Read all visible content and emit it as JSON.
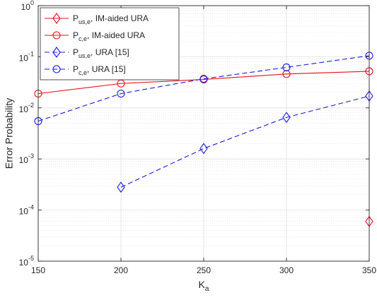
{
  "chart_data": {
    "type": "line",
    "title": "",
    "xlabel": "K",
    "xlabel_sub": "a",
    "ylabel": "Error Probability",
    "x_scale": "linear",
    "y_scale": "log",
    "xlim": [
      150,
      350
    ],
    "ylim": [
      1e-05,
      1
    ],
    "grid": true,
    "legend_position": "top-left",
    "x_ticks": [
      {
        "value": 150,
        "label": "150"
      },
      {
        "value": 200,
        "label": "200"
      },
      {
        "value": 250,
        "label": "250"
      },
      {
        "value": 300,
        "label": "300"
      },
      {
        "value": 350,
        "label": "350"
      }
    ],
    "y_ticks": [
      {
        "value": 1e-05,
        "base": "10",
        "exp": "-5"
      },
      {
        "value": 0.0001,
        "base": "10",
        "exp": "-4"
      },
      {
        "value": 0.001,
        "base": "10",
        "exp": "-3"
      },
      {
        "value": 0.01,
        "base": "10",
        "exp": "-2"
      },
      {
        "value": 0.1,
        "base": "10",
        "exp": "-1"
      },
      {
        "value": 1,
        "base": "10",
        "exp": "0"
      }
    ],
    "series": [
      {
        "name": "P_us,e, IM-aided URA",
        "legend_main": "P",
        "legend_sub": "us,e",
        "legend_rest": ", IM-aided URA",
        "color": "#e8101a",
        "line_style": "none",
        "marker": "diamond",
        "x": [
          350
        ],
        "y": [
          6e-05
        ]
      },
      {
        "name": "P_c,e, IM-aided URA",
        "legend_main": "P",
        "legend_sub": "c,e",
        "legend_rest": ", IM-aided URA",
        "color": "#e8101a",
        "line_style": "solid",
        "marker": "circle",
        "x": [
          150,
          200,
          250,
          300,
          350
        ],
        "y": [
          0.019,
          0.03,
          0.036,
          0.046,
          0.052
        ]
      },
      {
        "name": "P_us,e, URA [15]",
        "legend_main": "P",
        "legend_sub": "us,e",
        "legend_rest": ", URA [15]",
        "color": "#1a1ae0",
        "line_style": "dashed",
        "marker": "diamond",
        "x": [
          200,
          250,
          300,
          350
        ],
        "y": [
          0.00028,
          0.0016,
          0.0065,
          0.017
        ]
      },
      {
        "name": "P_c,e, URA [15]",
        "legend_main": "P",
        "legend_sub": "c,e",
        "legend_rest": ", URA [15]",
        "color": "#1a1ae0",
        "line_style": "dashed",
        "marker": "circle",
        "x": [
          150,
          200,
          250,
          300,
          350
        ],
        "y": [
          0.0055,
          0.019,
          0.037,
          0.062,
          0.105
        ]
      }
    ]
  }
}
